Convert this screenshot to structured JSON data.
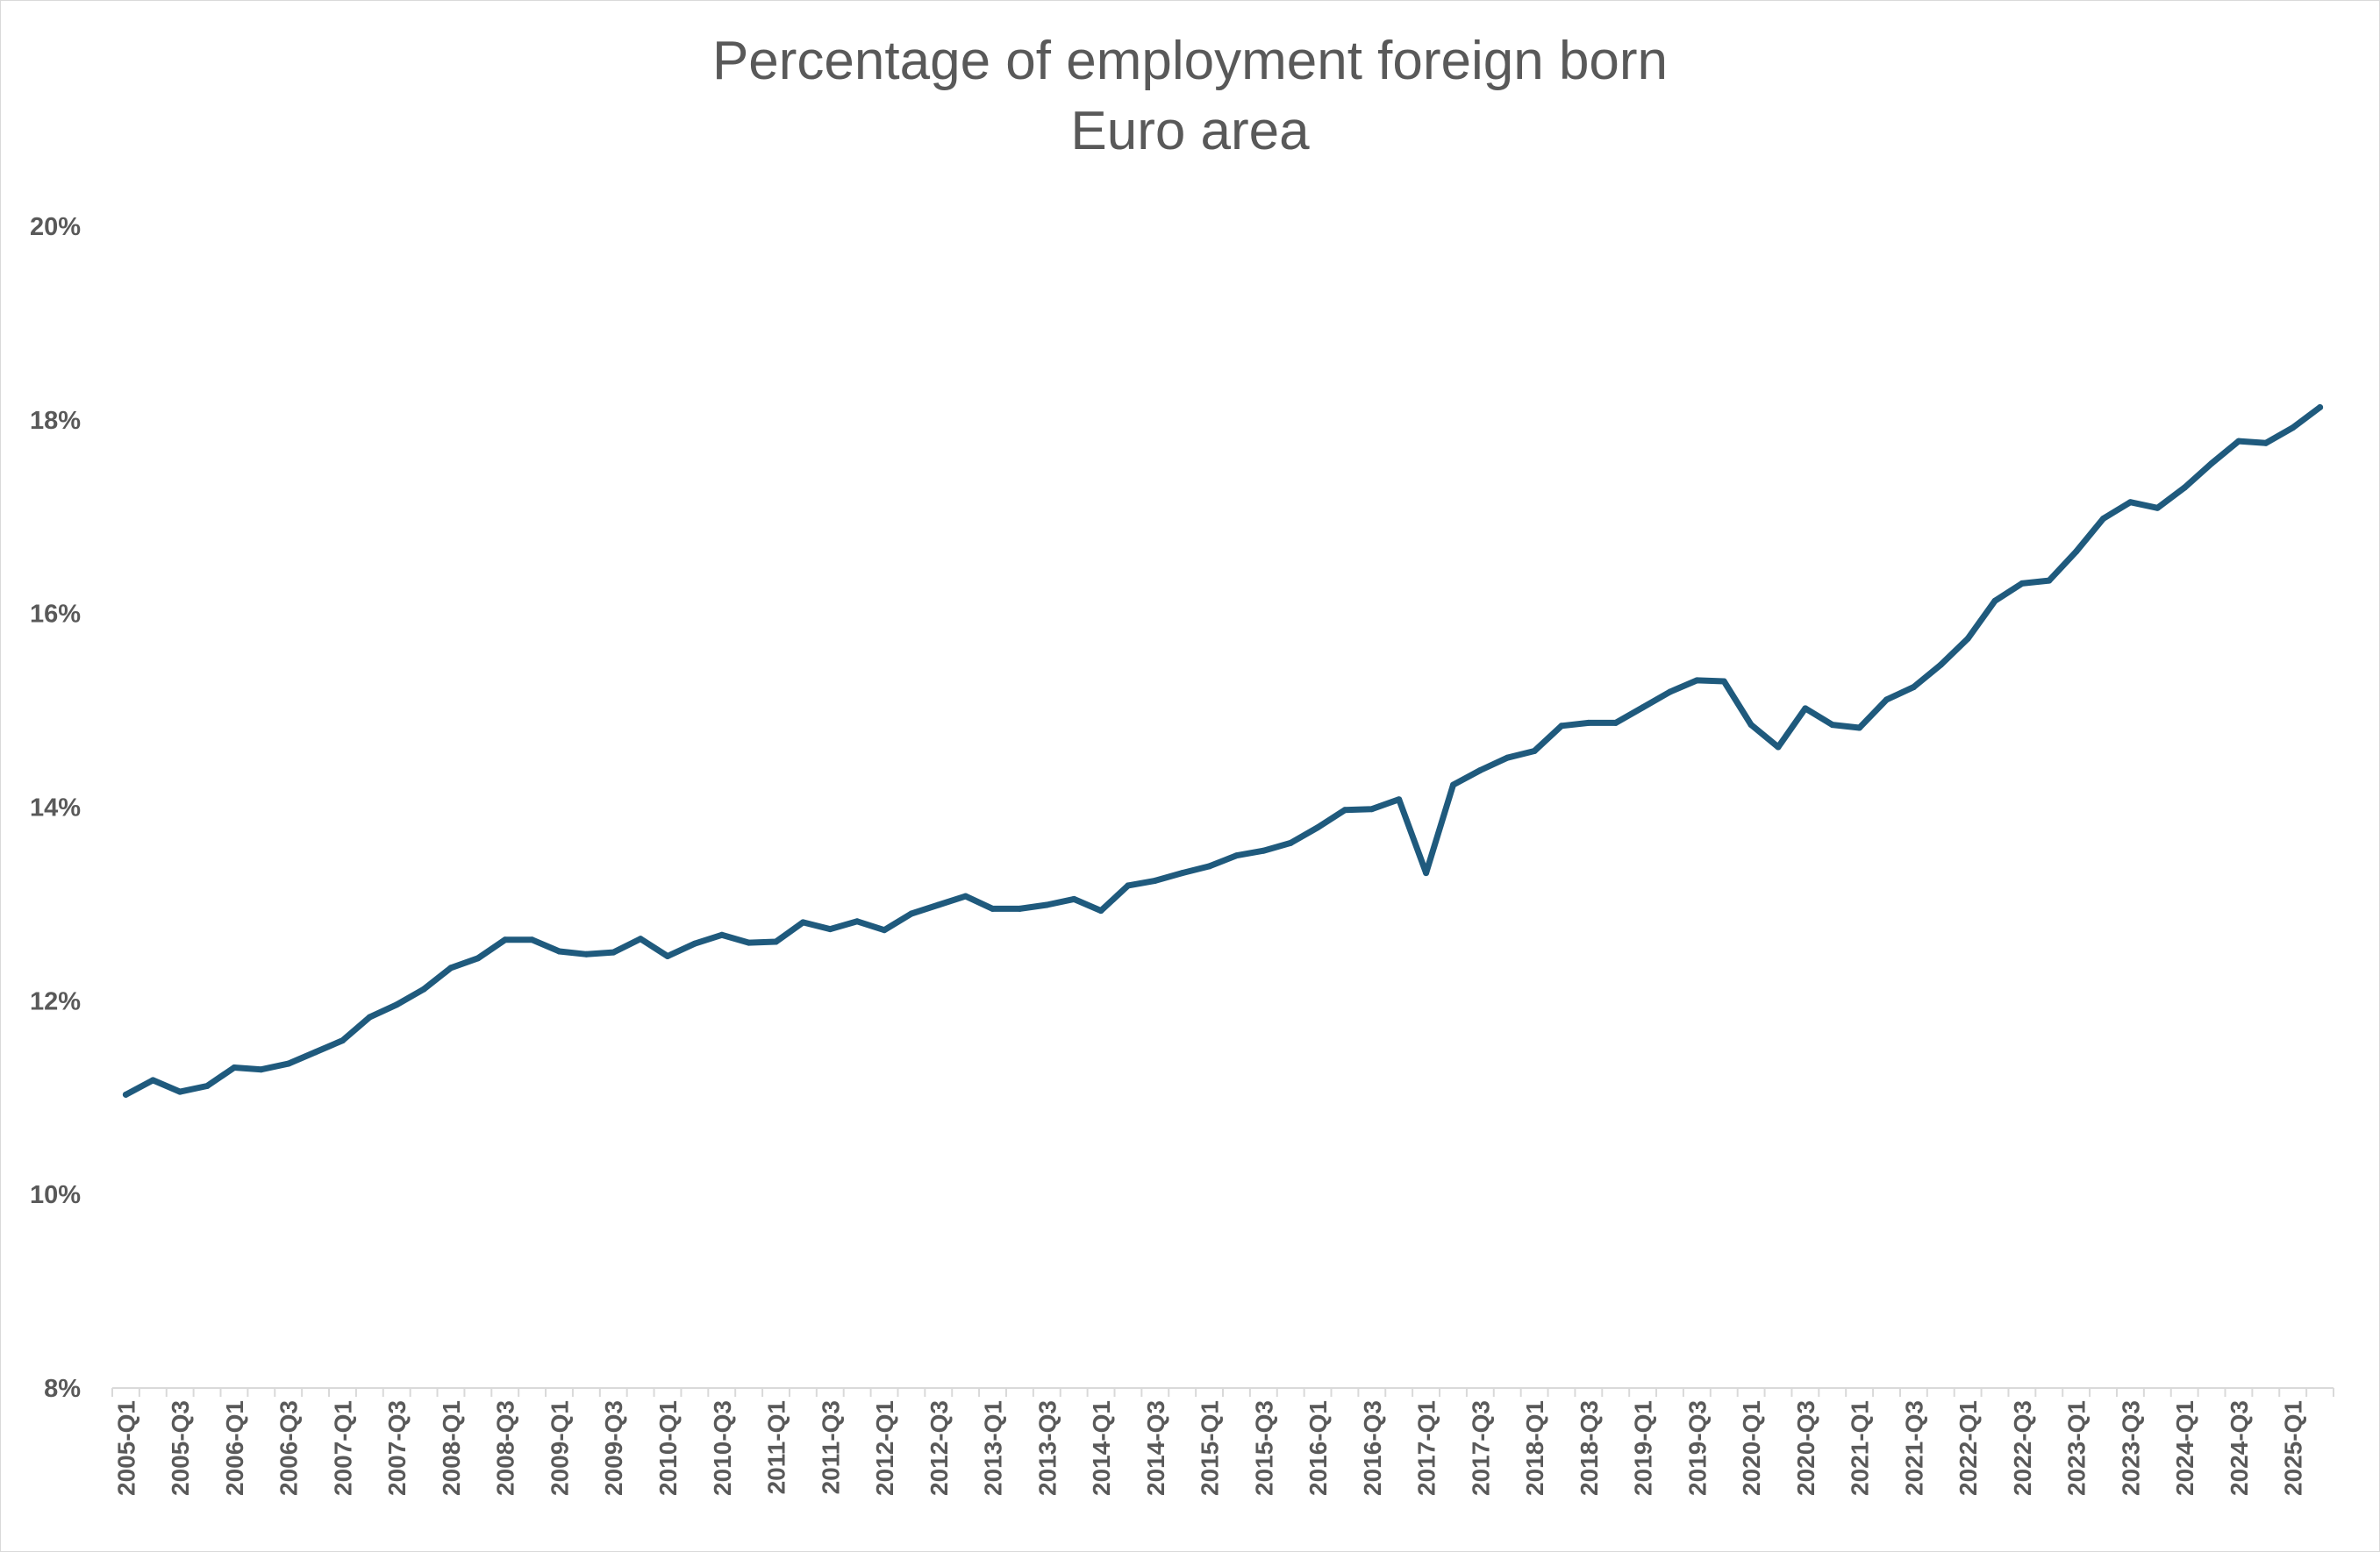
{
  "chart_data": {
    "type": "line",
    "title": "Percentage of employment foreign born",
    "subtitle": "Euro area",
    "xlabel": "",
    "ylabel": "",
    "ylim": [
      8,
      20
    ],
    "yticks": [
      8,
      10,
      12,
      14,
      16,
      18,
      20
    ],
    "ytick_labels": [
      "8%",
      "10%",
      "12%",
      "14%",
      "16%",
      "18%",
      "20%"
    ],
    "grid": false,
    "legend": "none",
    "line_color": "#1f5a7d",
    "categories": [
      "2005-Q1",
      "2005-Q2",
      "2005-Q3",
      "2005-Q4",
      "2006-Q1",
      "2006-Q2",
      "2006-Q3",
      "2006-Q4",
      "2007-Q1",
      "2007-Q2",
      "2007-Q3",
      "2007-Q4",
      "2008-Q1",
      "2008-Q2",
      "2008-Q3",
      "2008-Q4",
      "2009-Q1",
      "2009-Q2",
      "2009-Q3",
      "2009-Q4",
      "2010-Q1",
      "2010-Q2",
      "2010-Q3",
      "2010-Q4",
      "2011-Q1",
      "2011-Q2",
      "2011-Q3",
      "2011-Q4",
      "2012-Q1",
      "2012-Q2",
      "2012-Q3",
      "2012-Q4",
      "2013-Q1",
      "2013-Q2",
      "2013-Q3",
      "2013-Q4",
      "2014-Q1",
      "2014-Q2",
      "2014-Q3",
      "2014-Q4",
      "2015-Q1",
      "2015-Q2",
      "2015-Q3",
      "2015-Q4",
      "2016-Q1",
      "2016-Q2",
      "2016-Q3",
      "2016-Q4",
      "2017-Q1",
      "2017-Q2",
      "2017-Q3",
      "2017-Q4",
      "2018-Q1",
      "2018-Q2",
      "2018-Q3",
      "2018-Q4",
      "2019-Q1",
      "2019-Q2",
      "2019-Q3",
      "2019-Q4",
      "2020-Q1",
      "2020-Q2",
      "2020-Q3",
      "2020-Q4",
      "2021-Q1",
      "2021-Q2",
      "2021-Q3",
      "2021-Q4",
      "2022-Q1",
      "2022-Q2",
      "2022-Q3",
      "2022-Q4",
      "2023-Q1",
      "2023-Q2",
      "2023-Q3",
      "2023-Q4",
      "2024-Q1",
      "2024-Q2",
      "2024-Q3",
      "2024-Q4",
      "2025-Q1",
      "2025-Q2"
    ],
    "tick_labels": [
      "2005-Q1",
      "2005-Q3",
      "2006-Q1",
      "2006-Q3",
      "2007-Q1",
      "2007-Q3",
      "2008-Q1",
      "2008-Q3",
      "2009-Q1",
      "2009-Q3",
      "2010-Q1",
      "2010-Q3",
      "2011-Q1",
      "2011-Q3",
      "2012-Q1",
      "2012-Q3",
      "2013-Q1",
      "2013-Q3",
      "2014-Q1",
      "2014-Q3",
      "2015-Q1",
      "2015-Q3",
      "2016-Q1",
      "2016-Q3",
      "2017-Q1",
      "2017-Q3",
      "2018-Q1",
      "2018-Q3",
      "2019-Q1",
      "2019-Q3",
      "2020-Q1",
      "2020-Q3",
      "2021-Q1",
      "2021-Q3",
      "2022-Q1",
      "2022-Q3",
      "2023-Q1",
      "2023-Q3",
      "2024-Q1",
      "2024-Q3",
      "2025-Q1"
    ],
    "series": [
      {
        "values": [
          11.03,
          11.18,
          11.06,
          11.12,
          11.31,
          11.29,
          11.35,
          11.47,
          11.59,
          11.83,
          11.96,
          12.12,
          12.34,
          12.44,
          12.63,
          12.63,
          12.51,
          12.48,
          12.5,
          12.64,
          12.46,
          12.59,
          12.68,
          12.6,
          12.61,
          12.81,
          12.74,
          12.82,
          12.73,
          12.9,
          12.99,
          13.08,
          12.95,
          12.95,
          12.99,
          13.05,
          12.93,
          13.19,
          13.24,
          13.32,
          13.39,
          13.5,
          13.55,
          13.63,
          13.79,
          13.97,
          13.98,
          14.08,
          13.32,
          14.23,
          14.38,
          14.51,
          14.58,
          14.84,
          14.87,
          14.87,
          15.03,
          15.19,
          15.31,
          15.3,
          14.85,
          14.62,
          15.02,
          14.85,
          14.82,
          15.11,
          15.24,
          15.47,
          15.74,
          16.13,
          16.31,
          16.34,
          16.64,
          16.98,
          17.15,
          17.09,
          17.3,
          17.55,
          17.78,
          17.76,
          17.92,
          18.13
        ]
      }
    ]
  }
}
